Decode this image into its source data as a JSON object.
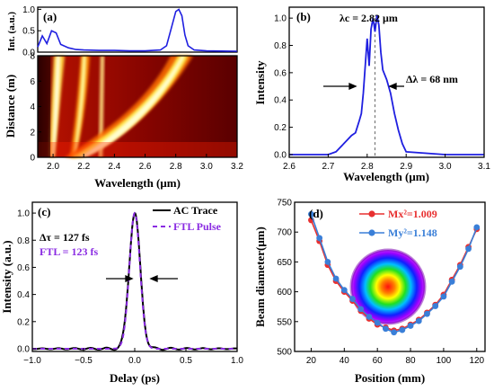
{
  "chart_data": [
    {
      "panel": "(a)",
      "type": "heatmap",
      "top_ylabel": "Int. (a.u.)",
      "top_yticks": [
        "0.0",
        "0.5",
        "1.0"
      ],
      "top_line_color": "#1f1fe0",
      "spectrum": {
        "x": [
          1.9,
          1.93,
          1.96,
          1.99,
          2.02,
          2.05,
          2.1,
          2.15,
          2.2,
          2.3,
          2.4,
          2.5,
          2.6,
          2.7,
          2.74,
          2.77,
          2.8,
          2.82,
          2.84,
          2.86,
          2.88,
          2.92,
          3.0,
          3.2
        ],
        "y": [
          0.12,
          0.38,
          0.2,
          0.5,
          0.45,
          0.18,
          0.1,
          0.06,
          0.05,
          0.04,
          0.04,
          0.03,
          0.03,
          0.05,
          0.15,
          0.55,
          0.95,
          1.0,
          0.85,
          0.4,
          0.15,
          0.05,
          0.03,
          0.02
        ]
      },
      "xlabel": "Wavelength (μm)",
      "ylabel": "Distance (m)",
      "xlim": [
        1.9,
        3.2
      ],
      "ylim": [
        0,
        8
      ],
      "xticks": [
        "2.0",
        "2.2",
        "2.4",
        "2.6",
        "2.8",
        "3.0",
        "3.2"
      ],
      "yticks": [
        "0",
        "2",
        "4",
        "6",
        "8"
      ],
      "colormap": [
        "#3a0000",
        "#a00000",
        "#ff4000",
        "#ffd000",
        "#ffffcc"
      ]
    },
    {
      "panel": "(b)",
      "type": "line",
      "xlabel": "Wavelength (μm)",
      "ylabel": "Intensity",
      "xlim": [
        2.6,
        3.1
      ],
      "ylim": [
        -0.02,
        1.08
      ],
      "xticks": [
        "2.6",
        "2.7",
        "2.8",
        "2.9",
        "3.0",
        "3.1"
      ],
      "yticks": [
        "0.0",
        "0.2",
        "0.4",
        "0.6",
        "0.8",
        "1.0"
      ],
      "annotations": [
        "λc = 2.82 μm",
        "Δλ = 68 nm"
      ],
      "center": 2.82,
      "color": "#1f1fe0",
      "x": [
        2.6,
        2.7,
        2.72,
        2.73,
        2.74,
        2.75,
        2.76,
        2.77,
        2.78,
        2.785,
        2.79,
        2.8,
        2.805,
        2.81,
        2.815,
        2.82,
        2.825,
        2.83,
        2.835,
        2.84,
        2.85,
        2.86,
        2.87,
        2.88,
        2.89,
        2.9,
        3.0,
        3.1
      ],
      "y": [
        0.0,
        0.0,
        0.02,
        0.05,
        0.08,
        0.11,
        0.14,
        0.16,
        0.25,
        0.3,
        0.45,
        0.85,
        0.65,
        0.92,
        1.0,
        0.9,
        1.02,
        0.95,
        0.75,
        0.62,
        0.55,
        0.45,
        0.3,
        0.18,
        0.08,
        0.02,
        0.0,
        0.0
      ]
    },
    {
      "panel": "(c)",
      "type": "line",
      "xlabel": "Delay (ps)",
      "ylabel": "Intensity (a.u.)",
      "xlim": [
        -1.0,
        1.0
      ],
      "ylim": [
        -0.02,
        1.08
      ],
      "xticks": [
        "−1.0",
        "−0.5",
        "0.0",
        "0.5",
        "1.0"
      ],
      "yticks": [
        "0.0",
        "0.2",
        "0.4",
        "0.6",
        "0.8",
        "1.0"
      ],
      "annotations": [
        "Δτ = 127 fs",
        "FTL = 123 fs"
      ],
      "legend": [
        "AC Trace",
        "FTL Pulse"
      ],
      "legend_position": "top-right",
      "series": [
        {
          "name": "AC Trace",
          "color": "#000000",
          "fwhm_ps": 0.127
        },
        {
          "name": "FTL Pulse",
          "color": "#8a2be2",
          "fwhm_ps": 0.123
        }
      ]
    },
    {
      "panel": "(d)",
      "type": "line",
      "xlabel": "Position (mm)",
      "ylabel": "Beam diameter(μm)",
      "xlim": [
        10,
        125
      ],
      "ylim": [
        500,
        750
      ],
      "xticks": [
        "20",
        "40",
        "60",
        "80",
        "100",
        "120"
      ],
      "yticks": [
        "500",
        "550",
        "600",
        "650",
        "700",
        "750"
      ],
      "legend": [
        "Mx²=1.009",
        "My²=1.148"
      ],
      "legend_position": "top-right",
      "series": [
        {
          "name": "Mx²=1.009",
          "color": "#e83030",
          "x": [
            20,
            25,
            30,
            35,
            40,
            45,
            50,
            55,
            60,
            65,
            70,
            75,
            80,
            85,
            90,
            95,
            100,
            105,
            110,
            115,
            120
          ],
          "y": [
            720,
            685,
            645,
            618,
            600,
            585,
            568,
            555,
            545,
            540,
            535,
            538,
            545,
            553,
            565,
            578,
            595,
            620,
            645,
            675,
            705
          ]
        },
        {
          "name": "My²=1.148",
          "color": "#3a7fd8",
          "x": [
            20,
            25,
            30,
            35,
            40,
            45,
            50,
            55,
            60,
            65,
            70,
            75,
            80,
            85,
            90,
            95,
            100,
            105,
            110,
            115,
            120
          ],
          "y": [
            730,
            690,
            650,
            622,
            603,
            588,
            571,
            558,
            548,
            538,
            532,
            536,
            543,
            551,
            563,
            576,
            592,
            617,
            642,
            672,
            708
          ]
        }
      ]
    }
  ]
}
